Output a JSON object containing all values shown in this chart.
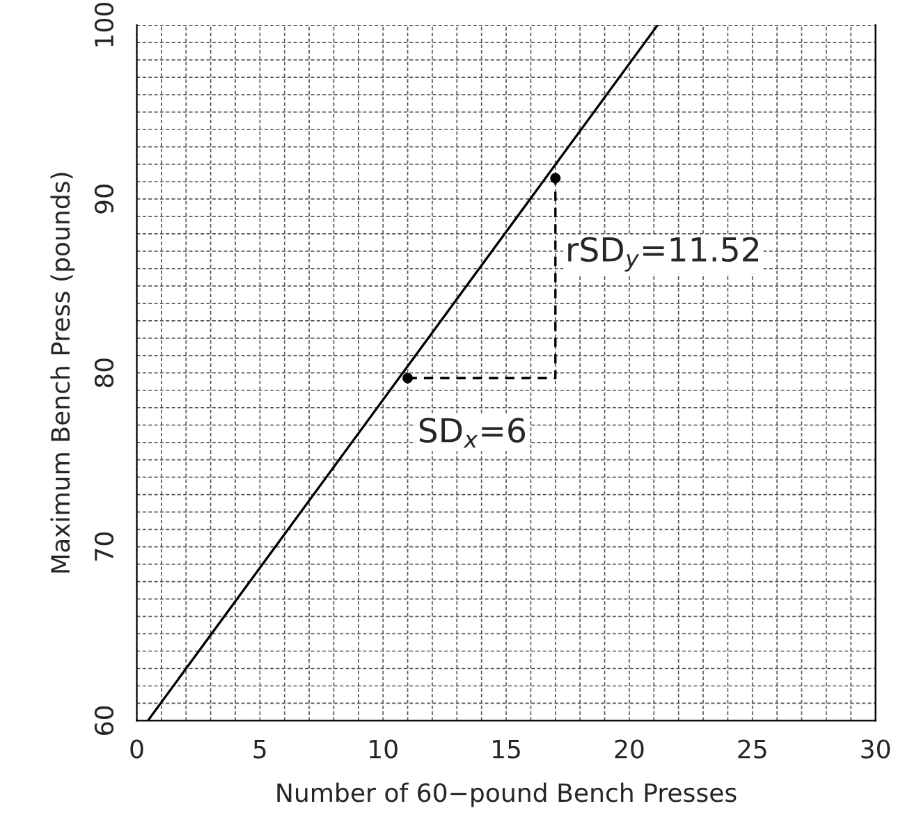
{
  "chart_data": {
    "type": "line",
    "xlabel": "Number of 60−pound Bench Presses",
    "ylabel": "Maximum Bench Press (pounds)",
    "xlim": [
      0,
      30
    ],
    "ylim": [
      60,
      100
    ],
    "xticks": [
      0,
      5,
      10,
      15,
      20,
      25,
      30
    ],
    "yticks": [
      60,
      70,
      80,
      90,
      100
    ],
    "grid": true,
    "series": [
      {
        "color": "#000000",
        "line_style": "solid",
        "x": [
          0.45,
          21.15
        ],
        "values": [
          60,
          100
        ]
      },
      {
        "color": "#000000",
        "line_style": "dashed",
        "x": [
          11,
          17,
          17
        ],
        "values": [
          79.7,
          79.7,
          91.2
        ]
      },
      {
        "type": "scatter",
        "color": "#000000",
        "marker": "circle",
        "x": [
          11,
          17
        ],
        "values": [
          79.7,
          91.2
        ]
      }
    ],
    "annotations": [
      "rSD$_{y}$=11.52",
      "SD$_{x}$=6"
    ]
  }
}
